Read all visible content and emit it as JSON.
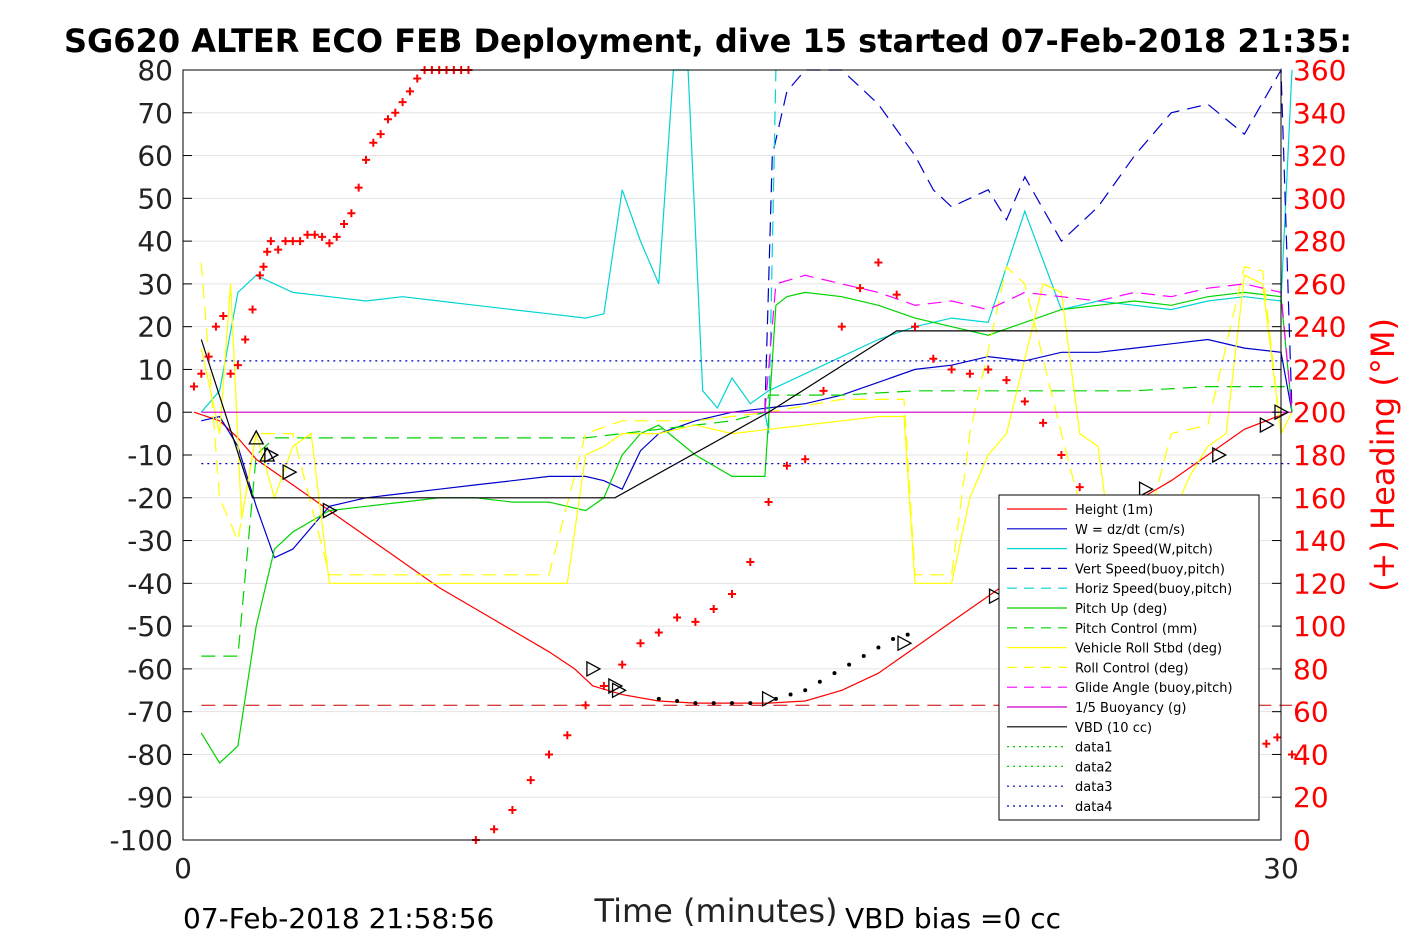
{
  "chart_data": {
    "type": "line",
    "title": "SG620 ALTER ECO FEB Deployment, dive 15 started 07-Feb-2018 21:35:",
    "xlabel": "Time (minutes)",
    "ylabel_right": "(+) Heading (°M)",
    "xlim": [
      0,
      30
    ],
    "ylim": [
      -100,
      80
    ],
    "ylim_right": [
      0,
      360
    ],
    "x_ticks": [
      "0",
      "30"
    ],
    "y_ticks": [
      "80",
      "70",
      "60",
      "50",
      "40",
      "30",
      "20",
      "10",
      "0",
      "-10",
      "-20",
      "-30",
      "-40",
      "-50",
      "-60",
      "-70",
      "-80",
      "-90",
      "-100"
    ],
    "y_ticks_right": [
      "360",
      "340",
      "320",
      "300",
      "280",
      "260",
      "240",
      "220",
      "200",
      "180",
      "160",
      "140",
      "120",
      "100",
      "80",
      "60",
      "40",
      "20",
      "0"
    ],
    "grid": "horizontal",
    "legend_position": "lower-right",
    "footer_left": "07-Feb-2018 21:58:56",
    "footer_right": "VBD bias =0 cc",
    "series": [
      {
        "name": "Height (1m)",
        "color": "#ff0000",
        "style": "solid",
        "x": [
          0.3,
          1.0,
          1.5,
          2.0,
          3.0,
          4.0,
          5.0,
          6.0,
          7.0,
          8.0,
          9.0,
          10.0,
          10.7,
          11.2,
          12.0,
          13.0,
          14.0,
          15.0,
          16.0,
          17.0,
          18.0,
          19.0,
          20.0,
          21.0,
          22.0,
          23.0,
          24.0,
          25.0,
          26.0,
          27.0,
          28.0,
          29.0,
          30.2
        ],
        "y": [
          0,
          -2,
          -6,
          -11,
          -17,
          -23,
          -29,
          -35,
          -41,
          -46,
          -51,
          -56,
          -60,
          -64,
          -66,
          -67.5,
          -68,
          -68,
          -68,
          -67.5,
          -65,
          -61,
          -55,
          -49,
          -43,
          -37,
          -32,
          -26,
          -21,
          -16,
          -10,
          -4,
          0
        ]
      },
      {
        "name": "W = dz/dt (cm/s)",
        "color": "#0000cc",
        "style": "solid",
        "x": [
          0.5,
          1.0,
          1.5,
          2.0,
          2.5,
          3.0,
          4.0,
          5.0,
          6.0,
          7.0,
          8.0,
          9.0,
          10.0,
          11.0,
          11.5,
          12.0,
          12.5,
          13.0,
          14.0,
          15.0,
          16.0,
          17.0,
          18.0,
          19.0,
          20.0,
          21.0,
          22.0,
          23.0,
          24.0,
          25.0,
          26.0,
          27.0,
          28.0,
          29.0,
          30.0,
          30.3
        ],
        "y": [
          -2,
          -1,
          -8,
          -22,
          -34,
          -32,
          -22,
          -20,
          -19,
          -18,
          -17,
          -16,
          -15,
          -15,
          -16,
          -18,
          -9,
          -5,
          -2,
          0,
          1,
          2,
          4,
          7,
          10,
          11,
          13,
          12,
          14,
          14,
          15,
          16,
          17,
          15,
          14,
          0
        ]
      },
      {
        "name": "Horiz Speed(W,pitch)",
        "color": "#00d4d4",
        "style": "solid",
        "x": [
          0.5,
          1.0,
          1.5,
          2.0,
          2.5,
          3.0,
          4.0,
          5.0,
          6.0,
          7.0,
          8.0,
          9.0,
          10.0,
          11.0,
          11.5,
          12.0,
          12.5,
          13.0,
          13.4,
          13.8,
          14.2,
          14.6,
          15.0,
          15.5,
          16.0,
          17.0,
          18.0,
          19.0,
          20.0,
          21.0,
          22.0,
          23.0,
          24.0,
          25.0,
          26.0,
          27.0,
          28.0,
          29.0,
          30.0,
          30.3
        ],
        "y": [
          0,
          5,
          28,
          32,
          30,
          28,
          27,
          26,
          27,
          26,
          25,
          24,
          23,
          22,
          23,
          52,
          40,
          30,
          80,
          80,
          5,
          1,
          8,
          2,
          5,
          9,
          13,
          17,
          20,
          22,
          21,
          47,
          24,
          26,
          25,
          24,
          26,
          27,
          26,
          80
        ]
      },
      {
        "name": "Vert Speed(buoy,pitch)",
        "color": "#0000cc",
        "style": "dashed",
        "x": [
          15.9,
          16.1,
          16.5,
          17.0,
          18.0,
          19.0,
          20.0,
          20.5,
          21.0,
          21.5,
          22.0,
          22.5,
          23.0,
          24.0,
          25.0,
          26.0,
          27.0,
          28.0,
          29.0,
          30.0,
          30.3
        ],
        "y": [
          0,
          60,
          75,
          80,
          80,
          72,
          60,
          52,
          48,
          50,
          52,
          45,
          55,
          40,
          48,
          60,
          70,
          72,
          65,
          80,
          0
        ]
      },
      {
        "name": "Horiz Speed(buoy,pitch)",
        "color": "#00d4d4",
        "style": "dashed",
        "x": [
          15.9,
          16.0,
          16.2
        ],
        "y": [
          0,
          -5,
          80
        ]
      },
      {
        "name": "Pitch Up (deg)",
        "color": "#00d400",
        "style": "solid",
        "x": [
          0.5,
          1.0,
          1.5,
          2.0,
          2.5,
          3.0,
          4.0,
          5.0,
          6.0,
          7.0,
          8.0,
          9.0,
          10.0,
          11.0,
          11.5,
          12.0,
          12.5,
          13.0,
          14.0,
          15.0,
          15.9,
          16.2,
          16.5,
          17.0,
          18.0,
          19.0,
          20.0,
          21.0,
          22.0,
          23.0,
          24.0,
          25.0,
          26.0,
          27.0,
          28.0,
          29.0,
          30.0,
          30.3
        ],
        "y": [
          -75,
          -82,
          -78,
          -50,
          -32,
          -28,
          -23,
          -22,
          -21,
          -20,
          -20,
          -21,
          -21,
          -23,
          -20,
          -10,
          -5,
          -3,
          -10,
          -15,
          -15,
          25,
          27,
          28,
          27,
          25,
          22,
          20,
          18,
          21,
          24,
          25,
          26,
          25,
          27,
          28,
          27,
          0
        ]
      },
      {
        "name": "Pitch Control (mm)",
        "color": "#00d400",
        "style": "dashed",
        "x": [
          0.5,
          1.5,
          2.0,
          2.5,
          3.0,
          5.0,
          8.0,
          11.0,
          12.0,
          13.0,
          14.0,
          15.0,
          15.9,
          16.0,
          18.0,
          20.0,
          22.0,
          24.0,
          26.0,
          28.0,
          30.0,
          30.3
        ],
        "y": [
          -57,
          -57,
          -10,
          -6,
          -6,
          -6,
          -6,
          -6,
          -5,
          -4,
          -3,
          -2,
          0,
          4,
          4,
          5,
          5,
          5,
          5,
          6,
          6,
          6
        ]
      },
      {
        "name": "Vehicle Roll Stbd (deg)",
        "color": "#ffff00",
        "style": "solid",
        "x": [
          0.5,
          1.0,
          1.3,
          1.6,
          2.0,
          2.5,
          3.0,
          3.5,
          4.0,
          5.0,
          6.0,
          7.0,
          8.0,
          9.0,
          10.0,
          10.5,
          11.0,
          11.5,
          12.0,
          13.0,
          14.0,
          15.0,
          16.0,
          17.0,
          18.0,
          19.0,
          19.7,
          20.0,
          21.0,
          21.5,
          22.0,
          22.5,
          23.5,
          24.0,
          24.5,
          25.0,
          25.5,
          26.0,
          27.0,
          27.5,
          28.0,
          28.5,
          29.0,
          29.5,
          30.0,
          30.3
        ],
        "y": [
          15,
          -5,
          30,
          -25,
          -5,
          -20,
          -8,
          -5,
          -40,
          -40,
          -40,
          -40,
          -40,
          -40,
          -40,
          -40,
          -10,
          -8,
          -5,
          -5,
          -3,
          -5,
          -4,
          -3,
          -2,
          -1,
          -1,
          -40,
          -40,
          -20,
          -10,
          -5,
          30,
          28,
          -5,
          -8,
          -40,
          -40,
          -25,
          -15,
          -8,
          -5,
          32,
          30,
          -5,
          0
        ]
      },
      {
        "name": "Roll Control (deg)",
        "color": "#ffff00",
        "style": "dashed",
        "x": [
          0.5,
          1.0,
          1.5,
          2.0,
          3.0,
          4.0,
          6.0,
          8.0,
          10.0,
          11.0,
          12.0,
          14.0,
          16.0,
          18.0,
          19.7,
          20.0,
          21.0,
          21.5,
          22.5,
          23.0,
          24.0,
          25.0,
          26.0,
          27.0,
          28.0,
          29.0,
          29.5,
          30.0
        ],
        "y": [
          35,
          -20,
          -30,
          -5,
          -5,
          -38,
          -38,
          -38,
          -38,
          -5,
          -2,
          -2,
          0,
          3,
          3,
          -38,
          -38,
          -5,
          34,
          30,
          -5,
          -38,
          -38,
          -5,
          -3,
          34,
          33,
          -5
        ]
      },
      {
        "name": "Glide Angle (buoy,pitch)",
        "color": "#ff00ff",
        "style": "dashed",
        "x": [
          15.9,
          16.2,
          17.0,
          18.0,
          19.0,
          20.0,
          21.0,
          22.0,
          23.0,
          24.0,
          25.0,
          26.0,
          27.0,
          28.0,
          29.0,
          30.0,
          30.3
        ],
        "y": [
          0,
          30,
          32,
          30,
          28,
          25,
          26,
          24,
          28,
          27,
          26,
          28,
          27,
          29,
          30,
          28,
          0
        ]
      },
      {
        "name": "1/5 Buoyancy (g)",
        "color": "#cc00cc",
        "style": "solid",
        "x": [
          0.5,
          15.0,
          15.9,
          16.0,
          30.3
        ],
        "y": [
          0,
          0,
          0,
          0,
          0
        ]
      },
      {
        "name": "VBD (10 cc)",
        "color": "#000000",
        "style": "solid",
        "x": [
          0.5,
          1.9,
          11.8,
          16.0,
          19.5,
          30.3
        ],
        "y": [
          17,
          -20,
          -20,
          0,
          19,
          19
        ]
      },
      {
        "name": "data1",
        "color": "#00d400",
        "style": "dotted",
        "x": [],
        "y": []
      },
      {
        "name": "data2",
        "color": "#00d400",
        "style": "dotted",
        "x": [],
        "y": []
      },
      {
        "name": "data3",
        "color": "#0000cc",
        "style": "dotted",
        "x": [
          0.5,
          30.3
        ],
        "y": [
          12,
          12
        ]
      },
      {
        "name": "data4",
        "color": "#0000cc",
        "style": "dotted",
        "x": [
          0.5,
          30.3
        ],
        "y": [
          -12,
          -12
        ]
      }
    ],
    "reference_lines": [
      {
        "color": "#cc0000",
        "style": "dashed",
        "y": -68.5,
        "x": [
          0.5,
          30.3
        ]
      }
    ],
    "markers": {
      "vbd_triangles": {
        "x": [
          2.0,
          2.3,
          2.4,
          2.9,
          4.0,
          11.2,
          11.8,
          11.9,
          16.0,
          19.7,
          22.2,
          23.3,
          24.6,
          25.7,
          26.3,
          28.3,
          29.6,
          30.0
        ],
        "y": [
          -6,
          -10,
          -10,
          -14,
          -23,
          -60,
          -64,
          -65,
          -67,
          -54,
          -43,
          -36,
          -30,
          -23,
          -18,
          -10,
          -3,
          0
        ]
      },
      "heading_dots": {
        "x": [
          13.0,
          13.5,
          14.0,
          14.5,
          15.0,
          15.5,
          16.2,
          16.6,
          17.0,
          17.4,
          17.8,
          18.2,
          18.6,
          19.0,
          19.4,
          19.8
        ],
        "y": [
          -67,
          -67.5,
          -68,
          -68,
          -68,
          -68,
          -67,
          -66,
          -65,
          -63,
          -61,
          -59,
          -57,
          -55,
          -53,
          -52
        ]
      },
      "heading_plus": {
        "x": [
          0.3,
          0.5,
          0.7,
          0.9,
          1.1,
          1.3,
          1.5,
          1.7,
          1.9,
          2.1,
          2.2,
          2.3,
          2.4,
          2.6,
          2.8,
          3.0,
          3.2,
          3.4,
          3.6,
          3.8,
          4.0,
          4.2,
          4.4,
          4.6,
          4.8,
          5.0,
          5.2,
          5.4,
          5.6,
          5.8,
          6.0,
          6.2,
          6.4,
          6.6,
          6.8,
          7.0,
          7.2,
          7.4,
          7.6,
          7.8,
          8.0,
          8.5,
          9.0,
          9.5,
          10.0,
          10.5,
          11.0,
          11.5,
          12.0,
          12.5,
          13.0,
          13.5,
          14.0,
          14.5,
          15.0,
          15.5,
          16.0,
          16.5,
          17.0,
          17.5,
          18.0,
          18.5,
          19.0,
          19.5,
          20.0,
          20.5,
          21.0,
          21.5,
          22.0,
          22.5,
          23.0,
          23.5,
          24.0,
          24.5,
          25.0,
          25.5,
          26.0,
          26.5,
          27.0,
          27.5,
          28.0,
          28.5,
          29.0,
          29.3,
          29.6,
          29.9,
          30.3
        ],
        "y": [
          212,
          218,
          226,
          240,
          245,
          218,
          222,
          234,
          248,
          264,
          268,
          275,
          280,
          276,
          280,
          280,
          280,
          283,
          283,
          282,
          279,
          282,
          288,
          293,
          305,
          318,
          326,
          330,
          337,
          340,
          345,
          350,
          356,
          360,
          360,
          360,
          360,
          360,
          360,
          360,
          0,
          5,
          14,
          28,
          40,
          49,
          63,
          72,
          82,
          92,
          97,
          104,
          102,
          108,
          115,
          130,
          158,
          175,
          178,
          210,
          240,
          258,
          270,
          255,
          240,
          225,
          220,
          218,
          220,
          215,
          205,
          195,
          180,
          165,
          150,
          135,
          120,
          110,
          90,
          60,
          40,
          42,
          55,
          60,
          45,
          48,
          40
        ]
      }
    }
  }
}
